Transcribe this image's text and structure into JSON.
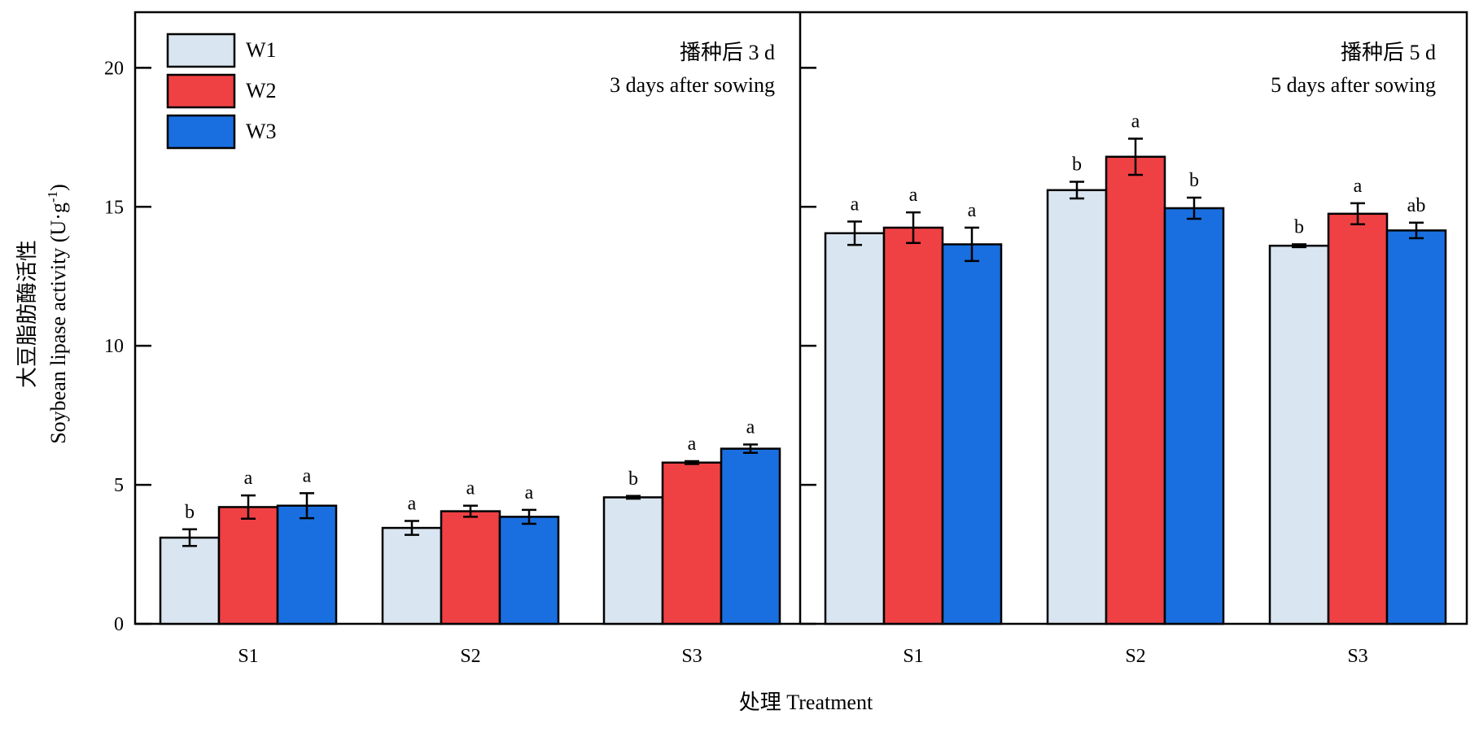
{
  "chart_data": {
    "type": "bar",
    "ylabel_cn": "大豆脂肪酶活性",
    "ylabel_en": "Soybean lipase activity (U·g",
    "ylabel_sup": "-1",
    "ylabel_end": ")",
    "xlabel": "处理 Treatment",
    "ylim": [
      0,
      22
    ],
    "yticks": [
      0,
      5,
      10,
      15,
      20
    ],
    "legend": {
      "placement": "top-left",
      "entries": [
        "W1",
        "W2",
        "W3"
      ]
    },
    "colors": {
      "W1": "#d9e5f0",
      "W2": "#ef4144",
      "W3": "#1a6fe0"
    },
    "panels": [
      {
        "title_cn": "播种后 3 d",
        "title_en": "3 days after sowing",
        "categories": [
          "S1",
          "S2",
          "S3"
        ],
        "series": [
          {
            "name": "W1",
            "values": [
              3.1,
              3.45,
              4.55
            ],
            "errors": [
              0.3,
              0.25,
              0.05
            ],
            "sig": [
              "b",
              "a",
              "b"
            ]
          },
          {
            "name": "W2",
            "values": [
              4.2,
              4.05,
              5.8
            ],
            "errors": [
              0.42,
              0.2,
              0.05
            ],
            "sig": [
              "a",
              "a",
              "a"
            ]
          },
          {
            "name": "W3",
            "values": [
              4.25,
              3.85,
              6.3
            ],
            "errors": [
              0.45,
              0.25,
              0.15
            ],
            "sig": [
              "a",
              "a",
              "a"
            ]
          }
        ]
      },
      {
        "title_cn": "播种后 5 d",
        "title_en": "5 days after sowing",
        "categories": [
          "S1",
          "S2",
          "S3"
        ],
        "series": [
          {
            "name": "W1",
            "values": [
              14.05,
              15.6,
              13.6
            ],
            "errors": [
              0.42,
              0.3,
              0.05
            ],
            "sig": [
              "a",
              "b",
              "b"
            ]
          },
          {
            "name": "W2",
            "values": [
              14.25,
              16.8,
              14.75
            ],
            "errors": [
              0.55,
              0.65,
              0.38
            ],
            "sig": [
              "a",
              "a",
              "a"
            ]
          },
          {
            "name": "W3",
            "values": [
              13.65,
              14.95,
              14.15
            ],
            "errors": [
              0.6,
              0.38,
              0.28
            ],
            "sig": [
              "a",
              "b",
              "ab"
            ]
          }
        ]
      }
    ]
  }
}
